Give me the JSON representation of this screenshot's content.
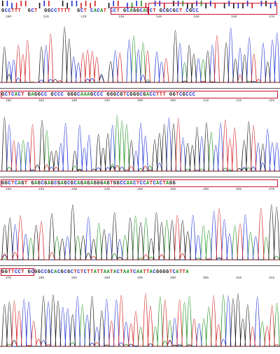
{
  "colors": {
    "A": "#1a8f1a",
    "C": "#1a2fd6",
    "G": "#111111",
    "T": "#d21a1a",
    "highlight": "#c8102e"
  },
  "panels": [
    {
      "sequence": "GCCTTT  GCT  GGCCTTTT  GCT CACAT CCT GCAGGCAGCT GCGCGCT CGCC",
      "positions": [
        "100",
        "110",
        "120",
        "130",
        "140",
        "150",
        "160",
        "170"
      ]
    },
    {
      "sequence": "GCTCACT GAGGCC GCCC GGGCAAAGCCC GGGCGTCGGGCGACCTTT GGTCGCCC",
      "positions": [
        "180",
        "185",
        "190",
        "195",
        "200",
        "205",
        "210",
        "215",
        "220"
      ]
    },
    {
      "sequence": "GGCTCAGT GAGCGAGCGAGCGCAGAGAGGGAGTGGCCAACTCCATCACTAGG",
      "positions": [
        "230",
        "235",
        "240",
        "245",
        "250",
        "255",
        "260",
        "265",
        "270"
      ]
    },
    {
      "sequence": "GGTTCCT GCGGCCGCACGCGCTCTCTTATTAATACTAATCAATTACGGGGTCATTA",
      "positions": [
        "275",
        "280",
        "285",
        "290",
        "295",
        "300",
        "305",
        "310",
        "315"
      ]
    }
  ]
}
